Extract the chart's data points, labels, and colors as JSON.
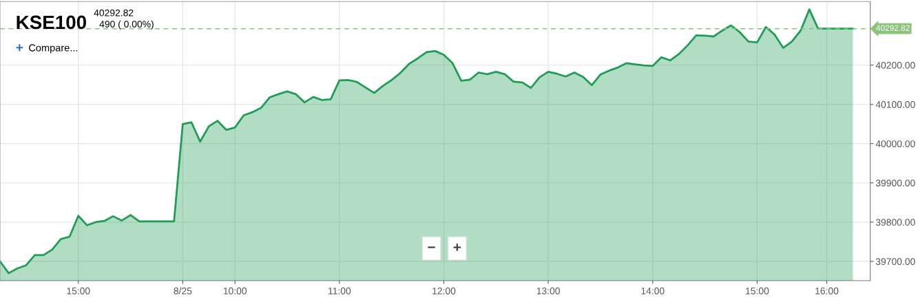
{
  "chart_data": {
    "type": "area",
    "title": "KSE100",
    "subtitle": "40292.82\n490 ( 0.00%)",
    "annotations": [
      "+",
      "Compare...",
      "−",
      "+"
    ],
    "categories": [
      null,
      null,
      null,
      null,
      null,
      null,
      null,
      null,
      null,
      "15:00",
      null,
      null,
      null,
      null,
      null,
      null,
      null,
      null,
      null,
      null,
      null,
      "8/25",
      null,
      null,
      null,
      null,
      null,
      "10:00",
      null,
      null,
      null,
      null,
      null,
      null,
      null,
      null,
      null,
      null,
      null,
      "11:00",
      null,
      null,
      null,
      null,
      null,
      null,
      null,
      null,
      null,
      null,
      null,
      "12:00",
      null,
      null,
      null,
      null,
      null,
      null,
      null,
      null,
      null,
      null,
      null,
      "13:00",
      null,
      null,
      null,
      null,
      null,
      null,
      null,
      null,
      null,
      null,
      null,
      "14:00",
      null,
      null,
      null,
      null,
      null,
      null,
      null,
      null,
      null,
      null,
      null,
      "15:00",
      null,
      null,
      null,
      null,
      null,
      null,
      null,
      "16:00",
      null,
      null,
      null
    ],
    "series": [
      {
        "color": "#1f9d55",
        "values": [
          39700,
          39670,
          39682,
          39690,
          39716,
          39716,
          39730,
          39757,
          39763,
          39816,
          39792,
          39800,
          39803,
          39815,
          39804,
          39818,
          39802,
          39802,
          39802,
          39802,
          39802,
          40050,
          40054,
          40005,
          40044,
          40058,
          40035,
          40041,
          40072,
          40080,
          40091,
          40118,
          40126,
          40133,
          40126,
          40105,
          40119,
          40111,
          40113,
          40161,
          40162,
          40157,
          40143,
          40129,
          40147,
          40162,
          40180,
          40203,
          40217,
          40233,
          40236,
          40226,
          40205,
          40160,
          40163,
          40181,
          40177,
          40183,
          40177,
          40158,
          40156,
          40142,
          40169,
          40183,
          40178,
          40171,
          40181,
          40170,
          40149,
          40176,
          40186,
          40194,
          40205,
          40202,
          40199,
          40198,
          40220,
          40212,
          40228,
          40250,
          40276,
          40275,
          40273,
          40288,
          40301,
          40284,
          40260,
          40258,
          40297,
          40278,
          40244,
          40260,
          40288,
          40342,
          40292.82,
          40292.82,
          40292.82,
          40292.82,
          40292.82
        ]
      }
    ],
    "ylim": [
      39651,
      40362
    ],
    "yticks": [
      {
        "value": 39700,
        "label": "39700.00"
      },
      {
        "value": 39800,
        "label": "39800.00"
      },
      {
        "value": 39900,
        "label": "39900.00"
      },
      {
        "value": 40000,
        "label": "40000.00"
      },
      {
        "value": 40100,
        "label": "40100.00"
      },
      {
        "value": 40200,
        "label": "40200.00"
      }
    ],
    "ref_lines": [
      {
        "axis": "y",
        "value": 40292.82,
        "label": "40292.82",
        "color": "#8cc47a",
        "line_style": "dashed"
      }
    ],
    "grid": true
  }
}
